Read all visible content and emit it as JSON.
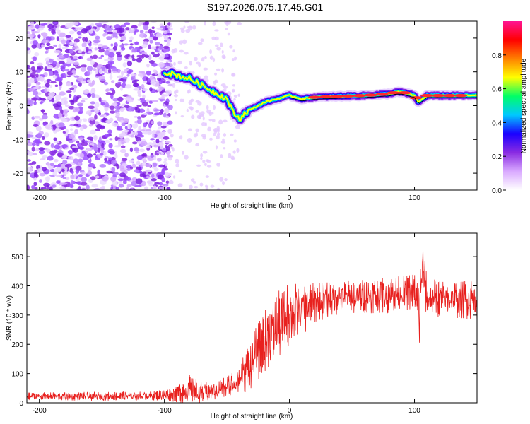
{
  "title": "S197.2026.075.17.45.G01",
  "colors": {
    "snr_line": "#e8201e",
    "frame": "#000000",
    "ridge": "#ff2a2a"
  },
  "chart_data": [
    {
      "type": "heatmap",
      "name": "spectrogram",
      "xlabel": "Height of straight line (km)",
      "ylabel": "Frequency (Hz)",
      "xlim": [
        -210,
        150
      ],
      "ylim": [
        -25,
        25
      ],
      "xticks": [
        -200,
        -100,
        0,
        100
      ],
      "yticks": [
        -20,
        -10,
        0,
        10,
        20
      ],
      "colorbar": {
        "label": "Normalized spectral amplitude",
        "range": [
          0.0,
          1.0
        ],
        "ticks": [
          "0.0",
          "0.2",
          "0.4",
          "0.6",
          "0.8"
        ],
        "colormap": [
          "#ffffff",
          "#d9a9ff",
          "#8a2be2",
          "#1a00ff",
          "#00c8ff",
          "#00ff66",
          "#ffff00",
          "#ff8000",
          "#ff0000",
          "#ff1493"
        ]
      },
      "ridge_x": [
        -100,
        -90,
        -80,
        -70,
        -60,
        -50,
        -45,
        -40,
        -35,
        -30,
        -20,
        -10,
        0,
        10,
        20,
        40,
        60,
        80,
        85,
        90,
        100,
        103,
        110,
        130,
        150
      ],
      "ridge_freq": [
        10,
        9,
        8,
        6,
        4,
        2,
        -2,
        -4,
        -2,
        -1,
        1,
        2,
        3,
        2,
        2.5,
        2.8,
        3,
        3.5,
        4,
        4,
        3,
        1,
        3,
        3,
        3
      ],
      "noise_region_x": [
        -210,
        -100
      ],
      "noise_region_freq": [
        -25,
        25
      ]
    },
    {
      "type": "line",
      "name": "snr",
      "xlabel": "Height of straight line (km)",
      "ylabel": "SNR (10 * v/v)",
      "xlim": [
        -210,
        150
      ],
      "ylim": [
        0,
        580
      ],
      "xticks": [
        -200,
        -100,
        0,
        100
      ],
      "yticks": [
        0,
        100,
        200,
        300,
        400,
        500
      ],
      "envelope_x": [
        -210,
        -150,
        -110,
        -95,
        -80,
        -70,
        -60,
        -50,
        -40,
        -30,
        -20,
        -10,
        0,
        10,
        20,
        30,
        40,
        60,
        80,
        90,
        100,
        104,
        106,
        110,
        130,
        150
      ],
      "envelope_mean": [
        22,
        22,
        24,
        28,
        45,
        35,
        40,
        55,
        80,
        140,
        210,
        260,
        300,
        320,
        340,
        355,
        360,
        365,
        370,
        375,
        380,
        300,
        470,
        360,
        355,
        355
      ],
      "envelope_amp": [
        10,
        12,
        12,
        18,
        40,
        30,
        25,
        30,
        45,
        70,
        80,
        90,
        90,
        70,
        55,
        50,
        45,
        45,
        50,
        45,
        50,
        120,
        100,
        50,
        50,
        55
      ]
    }
  ]
}
